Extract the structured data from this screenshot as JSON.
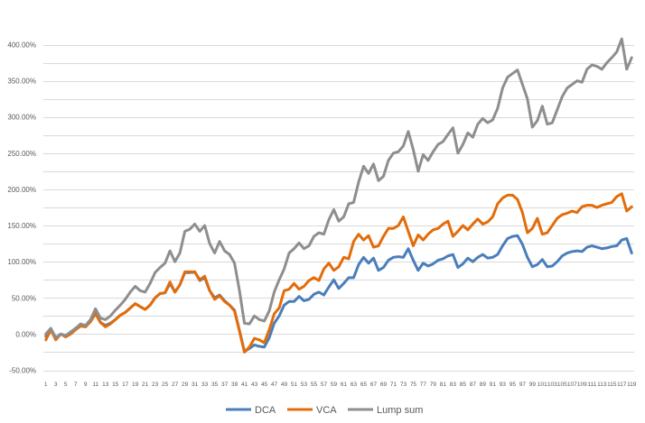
{
  "chart_data": {
    "type": "line",
    "title": "",
    "xlabel": "",
    "ylabel": "",
    "ylim": [
      -0.5,
      4.0
    ],
    "ytick_labels": [
      "-50.00%",
      "0.00%",
      "50.00%",
      "100.00%",
      "150.00%",
      "200.00%",
      "250.00%",
      "300.00%",
      "350.00%",
      "400.00%"
    ],
    "ytick_values": [
      -0.5,
      0,
      0.5,
      1.0,
      1.5,
      2.0,
      2.5,
      3.0,
      3.5,
      4.0
    ],
    "grid": true,
    "legend": "bottom",
    "x": [
      1,
      2,
      3,
      4,
      5,
      6,
      7,
      8,
      9,
      10,
      11,
      12,
      13,
      14,
      15,
      16,
      17,
      18,
      19,
      20,
      21,
      22,
      23,
      24,
      25,
      26,
      27,
      28,
      29,
      30,
      31,
      32,
      33,
      34,
      35,
      36,
      37,
      38,
      39,
      40,
      41,
      42,
      43,
      44,
      45,
      46,
      47,
      48,
      49,
      50,
      51,
      52,
      53,
      54,
      55,
      56,
      57,
      58,
      59,
      60,
      61,
      62,
      63,
      64,
      65,
      66,
      67,
      68,
      69,
      70,
      71,
      72,
      73,
      74,
      75,
      76,
      77,
      78,
      79,
      80,
      81,
      82,
      83,
      84,
      85,
      86,
      87,
      88,
      89,
      90,
      91,
      92,
      93,
      94,
      95,
      96,
      97,
      98,
      99,
      100,
      101,
      102,
      103,
      104,
      105,
      106,
      107,
      108,
      109,
      110,
      111,
      112,
      113,
      114,
      115,
      116,
      117,
      118,
      119
    ],
    "xtick_labels": [
      "1",
      "3",
      "5",
      "7",
      "9",
      "11",
      "13",
      "15",
      "17",
      "19",
      "21",
      "23",
      "25",
      "27",
      "29",
      "31",
      "33",
      "35",
      "37",
      "39",
      "41",
      "43",
      "45",
      "47",
      "49",
      "51",
      "53",
      "55",
      "57",
      "59",
      "61",
      "63",
      "65",
      "67",
      "69",
      "71",
      "73",
      "75",
      "77",
      "79",
      "81",
      "83",
      "85",
      "87",
      "89",
      "91",
      "93",
      "95",
      "97",
      "99",
      "101",
      "103",
      "105",
      "107",
      "109",
      "111",
      "113",
      "115",
      "117",
      "119"
    ],
    "series": [
      {
        "name": "DCA",
        "color": "#4a7ebb",
        "values": [
          -0.03,
          0.06,
          -0.05,
          0.0,
          -0.02,
          0.02,
          0.08,
          0.12,
          0.1,
          0.18,
          0.3,
          0.16,
          0.12,
          0.15,
          0.2,
          0.26,
          0.3,
          0.36,
          0.42,
          0.38,
          0.34,
          0.4,
          0.5,
          0.56,
          0.57,
          0.7,
          0.58,
          0.68,
          0.85,
          0.85,
          0.86,
          0.74,
          0.78,
          0.6,
          0.5,
          0.54,
          0.46,
          0.4,
          0.33,
          0.05,
          -0.24,
          -0.2,
          -0.15,
          -0.17,
          -0.18,
          -0.05,
          0.15,
          0.25,
          0.4,
          0.45,
          0.45,
          0.52,
          0.46,
          0.48,
          0.55,
          0.58,
          0.54,
          0.65,
          0.75,
          0.63,
          0.7,
          0.78,
          0.78,
          0.96,
          1.06,
          0.98,
          1.05,
          0.88,
          0.92,
          1.02,
          1.06,
          1.07,
          1.06,
          1.18,
          1.02,
          0.88,
          0.98,
          0.94,
          0.97,
          1.02,
          1.04,
          1.08,
          1.1,
          0.92,
          0.97,
          1.05,
          1.0,
          1.06,
          1.1,
          1.05,
          1.06,
          1.1,
          1.22,
          1.32,
          1.35,
          1.36,
          1.24,
          1.06,
          0.93,
          0.96,
          1.03,
          0.93,
          0.94,
          1.0,
          1.08,
          1.12,
          1.14,
          1.15,
          1.14,
          1.2,
          1.22,
          1.2,
          1.18,
          1.19,
          1.21,
          1.22,
          1.3,
          1.32,
          1.12
        ]
      },
      {
        "name": "VCA",
        "color": "#e36c09",
        "values": [
          -0.08,
          0.06,
          -0.08,
          0.0,
          -0.04,
          0.0,
          0.06,
          0.11,
          0.1,
          0.17,
          0.28,
          0.16,
          0.1,
          0.14,
          0.2,
          0.26,
          0.3,
          0.36,
          0.42,
          0.38,
          0.34,
          0.4,
          0.5,
          0.56,
          0.57,
          0.72,
          0.58,
          0.68,
          0.86,
          0.86,
          0.86,
          0.75,
          0.8,
          0.6,
          0.48,
          0.53,
          0.45,
          0.4,
          0.32,
          0.04,
          -0.25,
          -0.18,
          -0.06,
          -0.08,
          -0.12,
          0.06,
          0.28,
          0.36,
          0.6,
          0.62,
          0.7,
          0.62,
          0.66,
          0.74,
          0.78,
          0.74,
          0.9,
          0.98,
          0.88,
          0.93,
          1.06,
          1.04,
          1.28,
          1.38,
          1.3,
          1.36,
          1.2,
          1.22,
          1.35,
          1.46,
          1.46,
          1.5,
          1.62,
          1.42,
          1.22,
          1.37,
          1.3,
          1.38,
          1.44,
          1.46,
          1.52,
          1.56,
          1.35,
          1.42,
          1.5,
          1.44,
          1.52,
          1.59,
          1.52,
          1.55,
          1.62,
          1.8,
          1.88,
          1.92,
          1.92,
          1.86,
          1.68,
          1.4,
          1.46,
          1.6,
          1.38,
          1.4,
          1.5,
          1.6,
          1.65,
          1.67,
          1.7,
          1.68,
          1.76,
          1.78,
          1.78,
          1.75,
          1.78,
          1.8,
          1.82,
          1.9,
          1.94,
          1.7,
          1.76
        ]
      },
      {
        "name": "Lump sum",
        "color": "#8e8e8e",
        "values": [
          0.0,
          0.08,
          -0.05,
          0.0,
          -0.02,
          0.03,
          0.08,
          0.14,
          0.12,
          0.2,
          0.35,
          0.22,
          0.2,
          0.25,
          0.33,
          0.4,
          0.48,
          0.58,
          0.66,
          0.6,
          0.58,
          0.7,
          0.85,
          0.92,
          0.98,
          1.15,
          1.0,
          1.12,
          1.42,
          1.45,
          1.52,
          1.42,
          1.5,
          1.25,
          1.12,
          1.28,
          1.15,
          1.1,
          0.98,
          0.6,
          0.15,
          0.14,
          0.25,
          0.2,
          0.18,
          0.32,
          0.58,
          0.75,
          0.9,
          1.12,
          1.18,
          1.26,
          1.18,
          1.22,
          1.35,
          1.4,
          1.38,
          1.58,
          1.72,
          1.56,
          1.62,
          1.8,
          1.82,
          2.1,
          2.32,
          2.22,
          2.35,
          2.12,
          2.18,
          2.4,
          2.5,
          2.52,
          2.6,
          2.8,
          2.55,
          2.25,
          2.48,
          2.4,
          2.52,
          2.62,
          2.66,
          2.76,
          2.85,
          2.5,
          2.62,
          2.78,
          2.72,
          2.9,
          2.98,
          2.92,
          2.96,
          3.12,
          3.4,
          3.55,
          3.6,
          3.65,
          3.45,
          3.25,
          2.86,
          2.95,
          3.15,
          2.9,
          2.92,
          3.1,
          3.28,
          3.4,
          3.45,
          3.5,
          3.48,
          3.66,
          3.72,
          3.7,
          3.66,
          3.75,
          3.82,
          3.9,
          4.08,
          3.66,
          3.82
        ]
      }
    ]
  }
}
